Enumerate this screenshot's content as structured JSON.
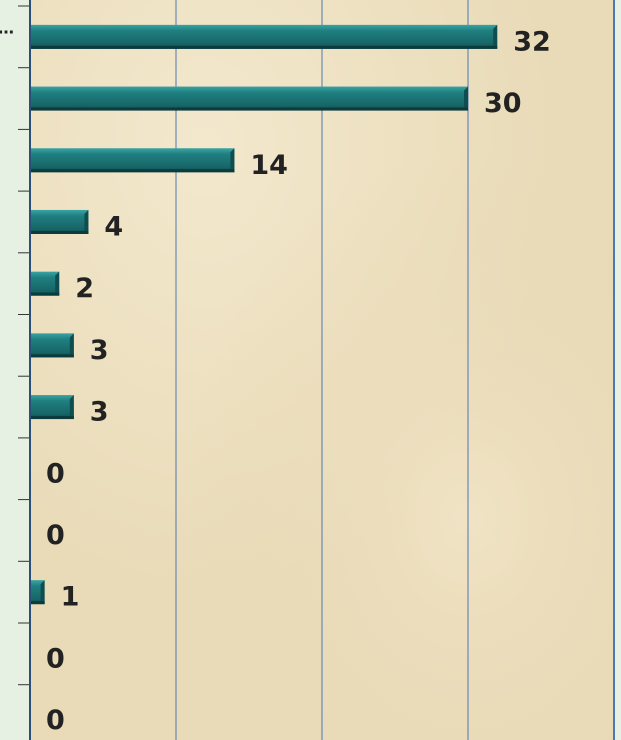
{
  "chart_data": {
    "type": "bar",
    "orientation": "horizontal",
    "categories": [
      "…",
      null,
      null,
      null,
      null,
      null,
      null,
      null,
      null,
      null,
      null,
      null
    ],
    "values": [
      32,
      30,
      14,
      4,
      2,
      3,
      3,
      0,
      0,
      1,
      0,
      0
    ],
    "color": "#1f7f80",
    "xlim": [
      0,
      40
    ],
    "xticks": [
      0,
      10,
      20,
      30,
      40
    ],
    "grid": true
  }
}
